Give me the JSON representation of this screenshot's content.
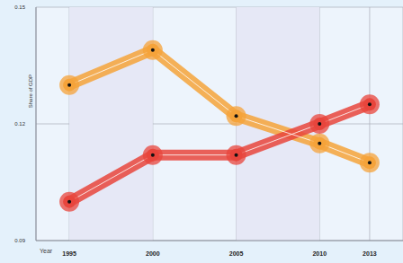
{
  "chart_data": {
    "type": "line",
    "x_label": "Year",
    "y_label": "Share of GDP",
    "x": [
      1995,
      2000,
      2005,
      2010,
      2013
    ],
    "series": [
      {
        "color": "#f5a33a",
        "values": [
          0.13,
          0.139,
          0.122,
          0.115,
          0.11
        ]
      },
      {
        "color": "#e8453c",
        "values": [
          0.1,
          0.112,
          0.112,
          0.12,
          0.125
        ]
      }
    ],
    "xlim": [
      1993,
      2015
    ],
    "xticks": [
      1995,
      2000,
      2005,
      2010,
      2013
    ],
    "ylim": [
      0.09,
      0.15
    ],
    "yticks": [
      0.09,
      0.12,
      0.15
    ],
    "grid": true,
    "marker": "circle"
  }
}
